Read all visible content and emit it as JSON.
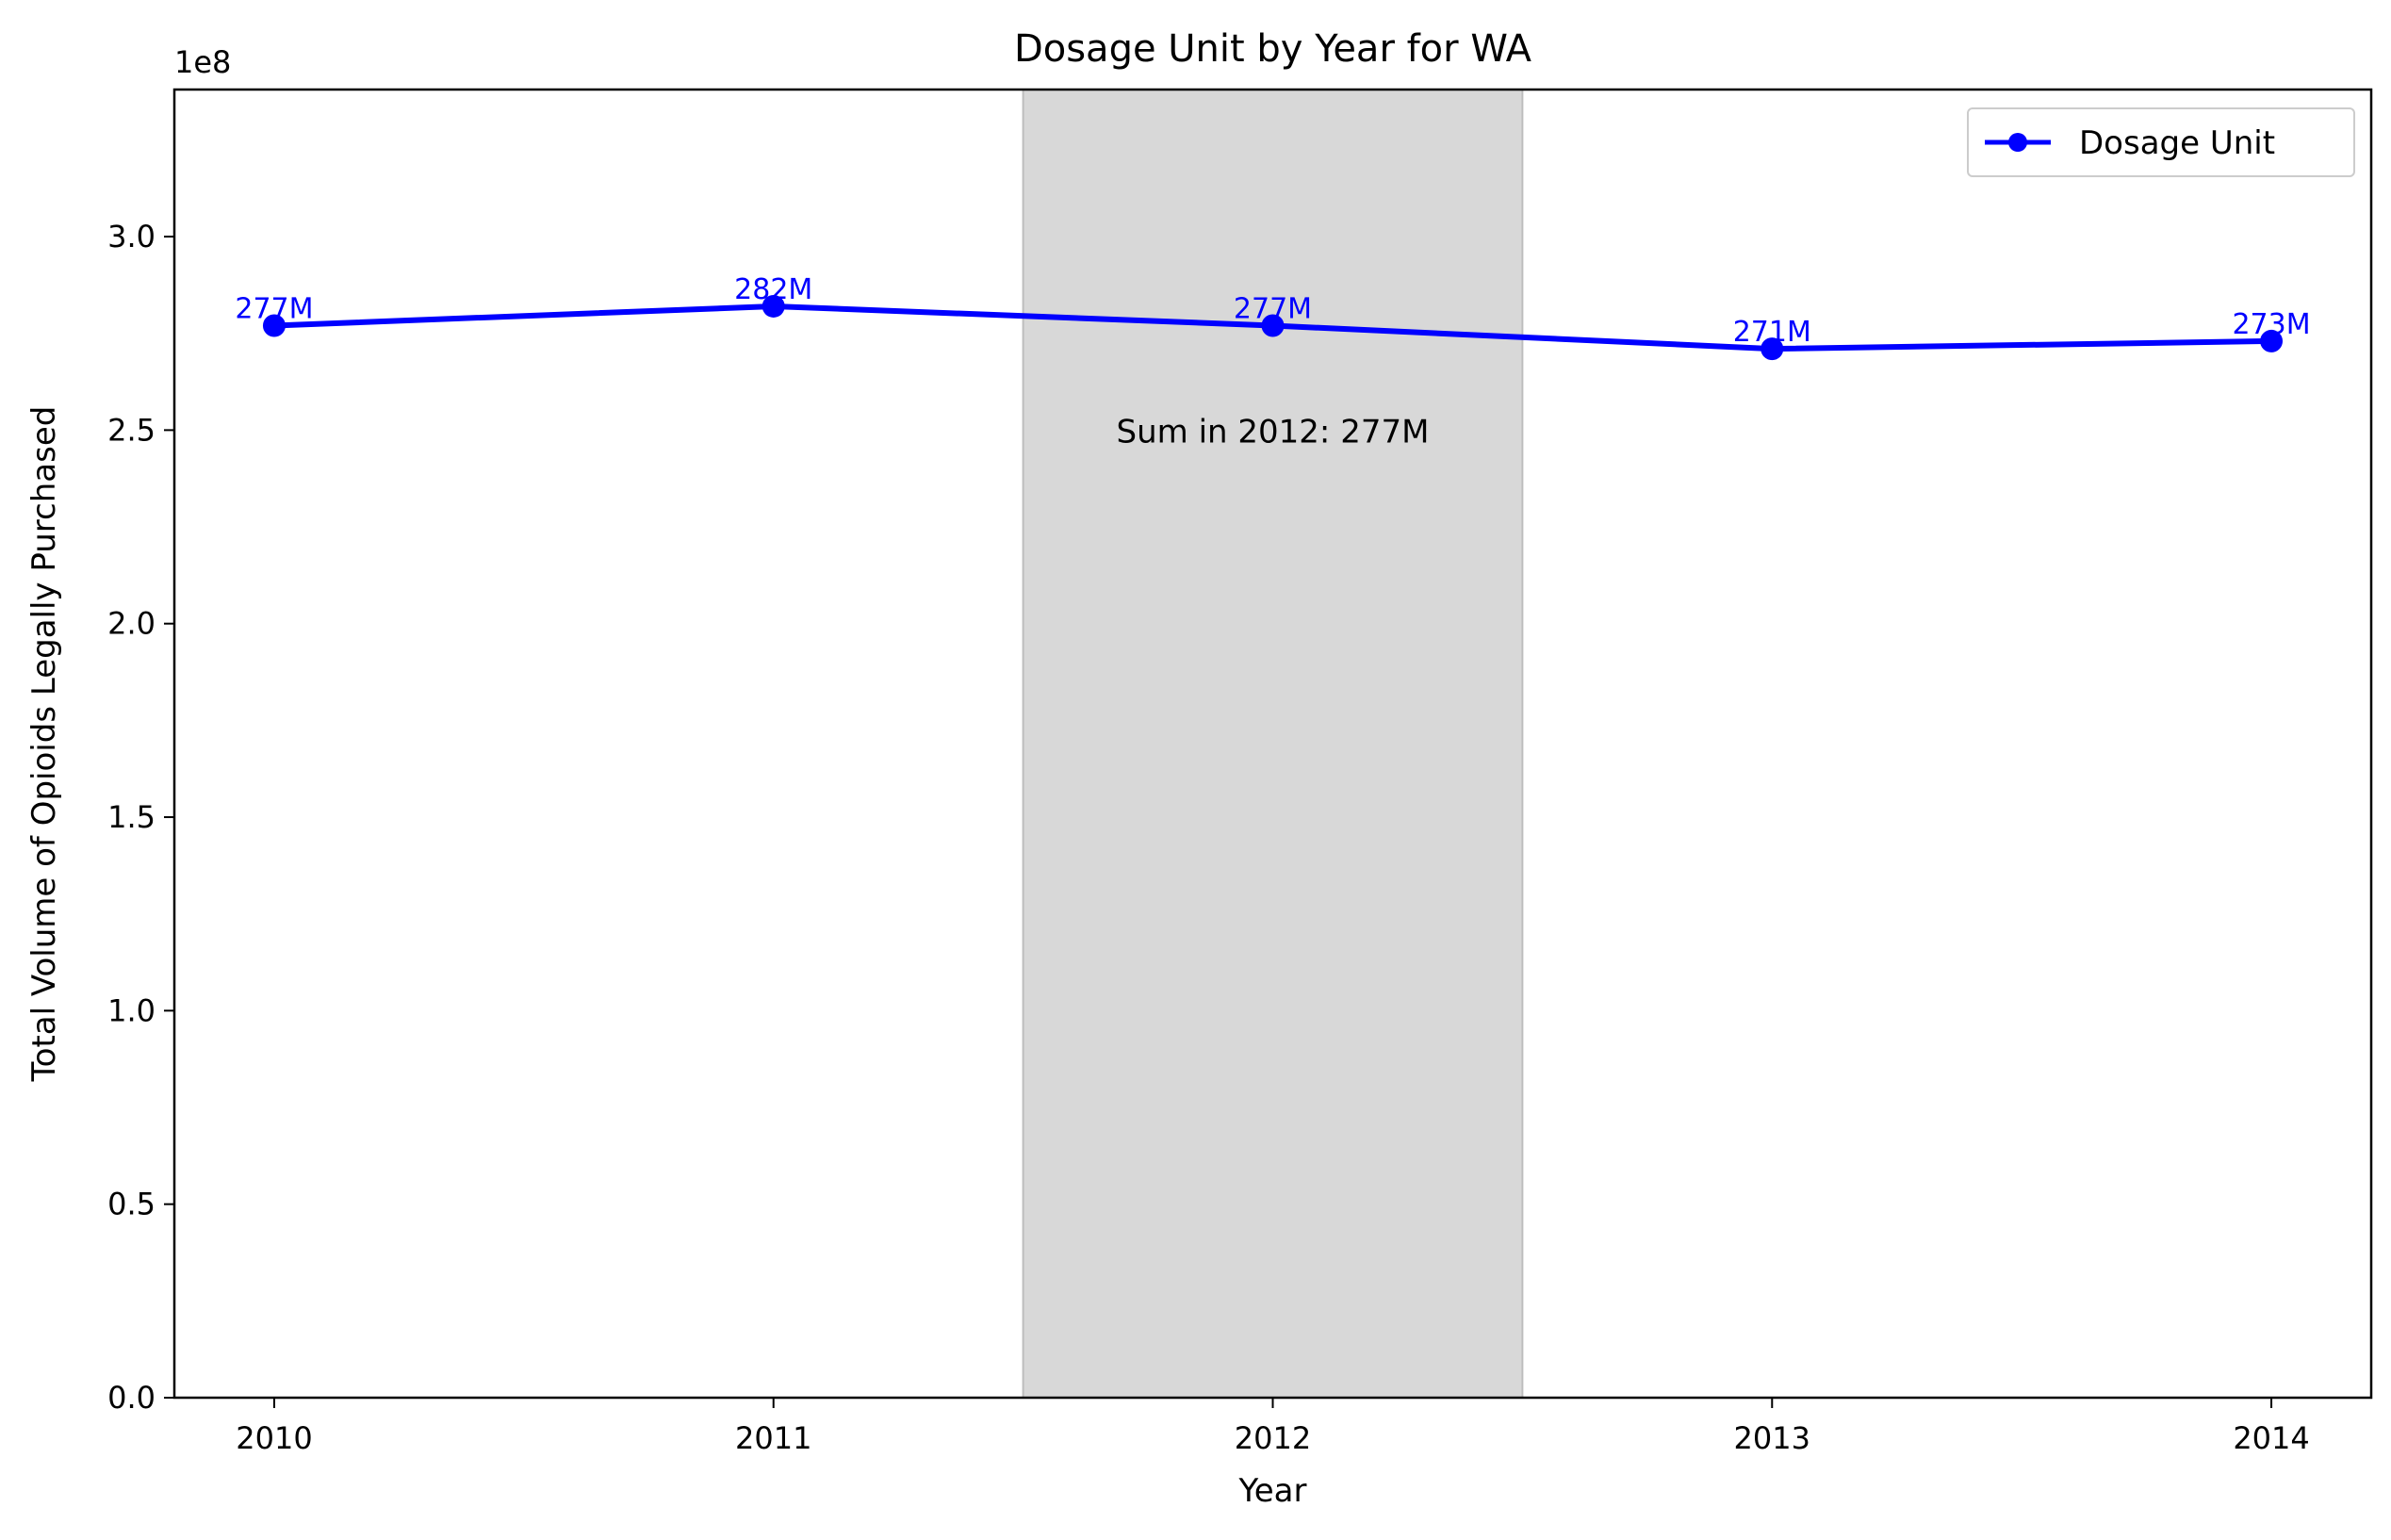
{
  "chart_data": {
    "type": "line",
    "title": "Dosage Unit by Year for WA",
    "xlabel": "Year",
    "ylabel": "Total Volume of Opioids Legally Purchased",
    "y_offset_text": "1e8",
    "categories": [
      "2010",
      "2011",
      "2012",
      "2013",
      "2014"
    ],
    "x_tick_labels": [
      "2010",
      "2011",
      "2012",
      "2013",
      "2014"
    ],
    "y_tick_labels": [
      "0.0",
      "0.5",
      "1.0",
      "1.5",
      "2.0",
      "2.5",
      "3.0"
    ],
    "y_ticks": [
      0,
      50000000,
      100000000,
      150000000,
      200000000,
      250000000,
      300000000
    ],
    "ylim": [
      0,
      338000000
    ],
    "series": [
      {
        "name": "Dosage Unit",
        "color": "#0000ff",
        "marker": "circle",
        "values": [
          277000000,
          282000000,
          277000000,
          271000000,
          273000000
        ],
        "labels": [
          "277M",
          "282M",
          "277M",
          "271M",
          "273M"
        ]
      }
    ],
    "highlight_span": {
      "from": 2011.5,
      "to": 2012.5,
      "color": "#d8d8d8"
    },
    "annotation": "Sum in 2012: 277M",
    "legend_position": "upper right",
    "grid": false
  }
}
